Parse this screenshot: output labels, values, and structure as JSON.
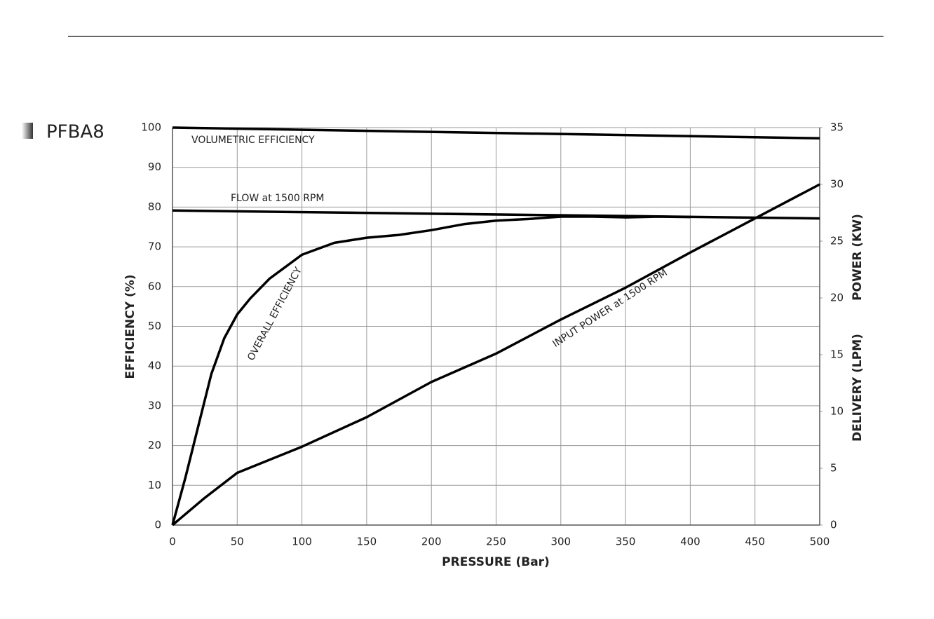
{
  "chart_data": {
    "type": "line",
    "title": "PFBA8",
    "x_label": "PRESSURE (Bar)",
    "y_label": "EFFICIENCY (%)",
    "y2_labels": [
      "POWER (KW)",
      "DELIVERY (LPM)"
    ],
    "xlim": [
      0,
      500
    ],
    "xticks": [
      0,
      50,
      100,
      150,
      200,
      250,
      300,
      350,
      400,
      450,
      500
    ],
    "ylim": [
      0,
      100
    ],
    "yticks": [
      0,
      10,
      20,
      30,
      40,
      50,
      60,
      70,
      80,
      90,
      100
    ],
    "y2lim": [
      0,
      35
    ],
    "y2ticks": [
      0,
      5,
      10,
      15,
      20,
      25,
      30,
      35
    ],
    "grid": true,
    "series": [
      {
        "name": "VOLUMETRIC EFFICIENCY",
        "color": "#000000",
        "x": [
          0,
          500
        ],
        "values": [
          100,
          97.3
        ]
      },
      {
        "name": "FLOW at 1500 RPM",
        "color": "#000000",
        "axis": "y2",
        "x": [
          0,
          500
        ],
        "values": [
          27.7,
          27.0
        ]
      },
      {
        "name": "OVERALL EFFICIENCY",
        "color": "#000000",
        "x": [
          0,
          10,
          20,
          30,
          40,
          50,
          60,
          75,
          100,
          125,
          150,
          175,
          200,
          225,
          250,
          275,
          300,
          325,
          350,
          375,
          400
        ],
        "values": [
          0,
          12,
          25,
          38,
          47,
          53,
          57,
          62,
          68,
          71,
          72.3,
          73,
          74.2,
          75.7,
          76.6,
          77,
          77.6,
          77.6,
          77.4,
          77.6,
          77.5
        ]
      },
      {
        "name": "INPUT POWER at 1500 RPM",
        "color": "#000000",
        "axis": "y2",
        "x": [
          0,
          25,
          50,
          100,
          150,
          200,
          250,
          300,
          350,
          400,
          450,
          500
        ],
        "values": [
          0,
          2.4,
          4.6,
          6.9,
          9.5,
          12.6,
          15.1,
          18.1,
          20.9,
          24.0,
          27.0,
          30
        ]
      }
    ]
  }
}
